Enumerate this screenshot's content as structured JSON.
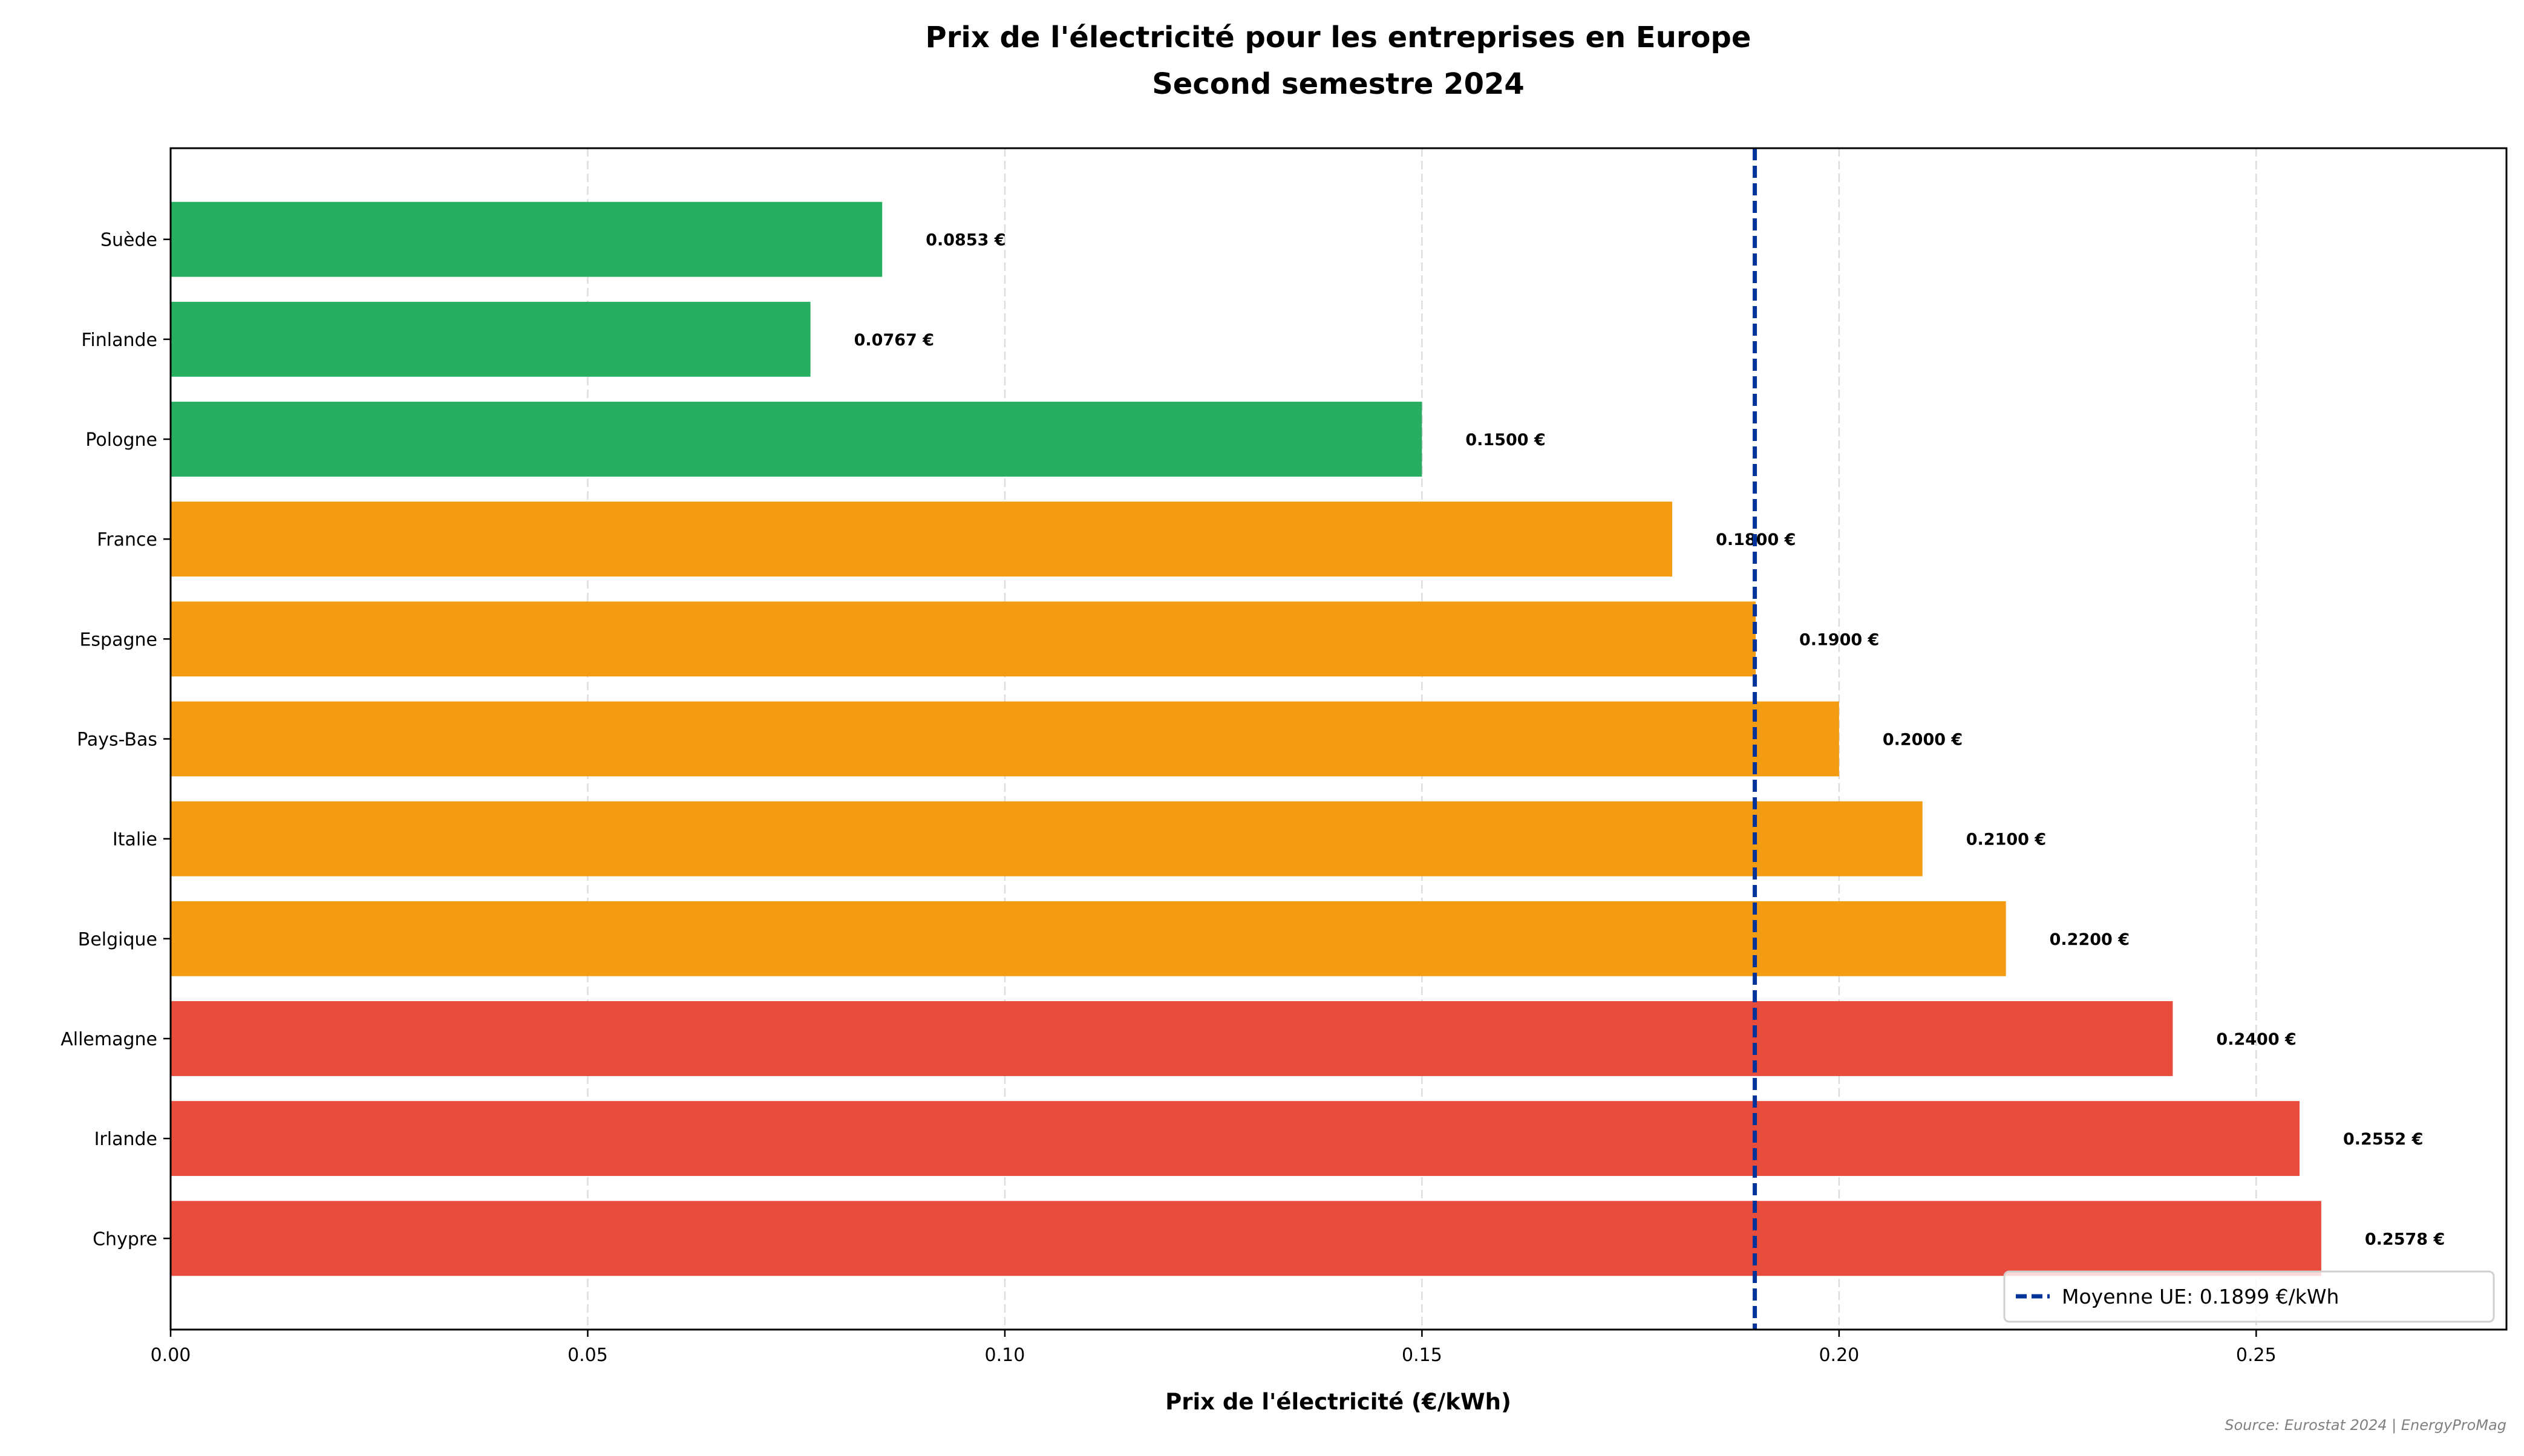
{
  "chart_data": {
    "type": "bar",
    "orientation": "horizontal",
    "title": "Prix de l'électricité pour les entreprises en Europe",
    "subtitle": "Second semestre 2024",
    "xlabel": "Prix de l'électricité (€/kWh)",
    "ylabel": "",
    "xlim": [
      0,
      0.28
    ],
    "xticks": [
      "0.00",
      "0.05",
      "0.10",
      "0.15",
      "0.20",
      "0.25"
    ],
    "grid": "vertical dashed",
    "categories": [
      "Suède",
      "Finlande",
      "Pologne",
      "France",
      "Espagne",
      "Pays-Bas",
      "Italie",
      "Belgique",
      "Allemagne",
      "Irlande",
      "Chypre"
    ],
    "values": [
      0.0853,
      0.0767,
      0.15,
      0.18,
      0.19,
      0.2,
      0.21,
      0.22,
      0.24,
      0.2552,
      0.2578
    ],
    "value_labels": [
      "0.0853 €",
      "0.0767 €",
      "0.1500 €",
      "0.1800 €",
      "0.1900 €",
      "0.2000 €",
      "0.2100 €",
      "0.2200 €",
      "0.2400 €",
      "0.2552 €",
      "0.2578 €"
    ],
    "bar_colors": [
      "#27ae60",
      "#27ae60",
      "#27ae60",
      "#f39c12",
      "#f39c12",
      "#f39c12",
      "#f39c12",
      "#f39c12",
      "#e74c3c",
      "#e74c3c",
      "#e74c3c"
    ],
    "reference_line": {
      "value": 0.1899,
      "label": "Moyenne UE: 0.1899 €/kWh",
      "color": "#003399",
      "style": "dashed"
    },
    "legend_position": "bottom-right",
    "source": "Source: Eurostat 2024 | EnergyProMag"
  }
}
